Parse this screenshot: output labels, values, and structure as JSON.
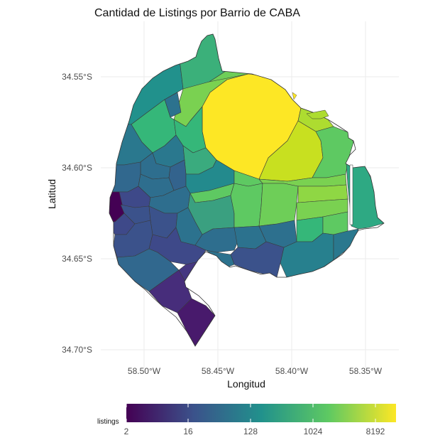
{
  "title": "Cantidad de Listings por Barrio de CABA",
  "xlabel": "Longitud",
  "ylabel": "Latitud",
  "x_ticks": [
    "58.50°W",
    "58.45°W",
    "58.40°W",
    "58.35°W"
  ],
  "y_ticks": [
    "34.55°S",
    "34.60°S",
    "34.65°S",
    "34.70°S"
  ],
  "legend": {
    "title": "listings",
    "ticks": [
      "2",
      "16",
      "128",
      "1024",
      "8192"
    ],
    "scale": "log2",
    "palette": [
      "#440154",
      "#3b528b",
      "#21918c",
      "#5ec962",
      "#fde725"
    ]
  },
  "chart_data": {
    "type": "map",
    "title": "Cantidad de Listings por Barrio de CABA",
    "xlabel": "Longitud",
    "ylabel": "Latitud",
    "xlim": [
      -58.53,
      -58.33
    ],
    "ylim": [
      -34.705,
      -34.535
    ],
    "fill_variable": "listings",
    "fill_scale": "log2 (viridis)",
    "fill_range": [
      2,
      8192
    ],
    "grid": true,
    "legend_position": "bottom"
  }
}
